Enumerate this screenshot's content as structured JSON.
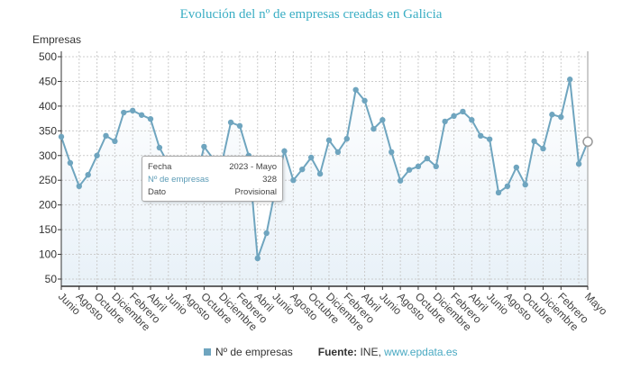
{
  "chart_data": {
    "type": "line",
    "title": "Evolución del nº de empresas creadas en Galicia",
    "ylabel": "Empresas",
    "xlabel": "",
    "ylim": [
      40,
      505
    ],
    "y_ticks": [
      50,
      100,
      150,
      200,
      250,
      300,
      350,
      400,
      450,
      500
    ],
    "grid": true,
    "x_range": [
      "2018 - Junio",
      "2023 - Mayo"
    ],
    "x_tick_labels": [
      {
        "index": 0,
        "label": "Junio"
      },
      {
        "index": 2,
        "label": "Agosto"
      },
      {
        "index": 4,
        "label": "Octubre"
      },
      {
        "index": 6,
        "label": "Diciembre"
      },
      {
        "index": 8,
        "label": "Febrero"
      },
      {
        "index": 10,
        "label": "Abril"
      },
      {
        "index": 12,
        "label": "Junio"
      },
      {
        "index": 14,
        "label": "Agosto"
      },
      {
        "index": 16,
        "label": "Octubre"
      },
      {
        "index": 18,
        "label": "Diciembre"
      },
      {
        "index": 20,
        "label": "Febrero"
      },
      {
        "index": 22,
        "label": "Abril"
      },
      {
        "index": 24,
        "label": "Junio"
      },
      {
        "index": 26,
        "label": "Agosto"
      },
      {
        "index": 28,
        "label": "Octubre"
      },
      {
        "index": 30,
        "label": "Diciembre"
      },
      {
        "index": 32,
        "label": "Febrero"
      },
      {
        "index": 34,
        "label": "Abril"
      },
      {
        "index": 36,
        "label": "Junio"
      },
      {
        "index": 38,
        "label": "Agosto"
      },
      {
        "index": 40,
        "label": "Octubre"
      },
      {
        "index": 42,
        "label": "Diciembre"
      },
      {
        "index": 44,
        "label": "Febrero"
      },
      {
        "index": 46,
        "label": "Abril"
      },
      {
        "index": 48,
        "label": "Junio"
      },
      {
        "index": 50,
        "label": "Agosto"
      },
      {
        "index": 52,
        "label": "Octubre"
      },
      {
        "index": 54,
        "label": "Diciembre"
      },
      {
        "index": 56,
        "label": "Febrero"
      },
      {
        "index": 59,
        "label": "Mayo"
      }
    ],
    "series": [
      {
        "name": "Nº de empresas",
        "color": "#6fa5bf",
        "values": [
          338,
          285,
          238,
          261,
          300,
          340,
          329,
          387,
          391,
          382,
          374,
          316,
          283,
          281,
          223,
          241,
          318,
          294,
          285,
          367,
          360,
          300,
          92,
          143,
          233,
          309,
          250,
          272,
          296,
          263,
          331,
          307,
          334,
          433,
          411,
          354,
          372,
          307,
          249,
          271,
          278,
          294,
          278,
          369,
          380,
          389,
          372,
          340,
          333,
          225,
          238,
          276,
          241,
          329,
          314,
          383,
          378,
          454,
          283,
          328
        ]
      }
    ],
    "legend_position": "bottom",
    "highlighted_index": 59
  },
  "tooltip": {
    "rows": [
      {
        "label": "Fecha",
        "value": "2023 - Mayo"
      },
      {
        "label": "Nº de empresas",
        "value": "328"
      },
      {
        "label": "Dato",
        "value": "Provisional"
      }
    ]
  },
  "legend": {
    "series_label": "Nº de empresas",
    "source_label": "Fuente:",
    "source_text": "INE,",
    "source_link": "www.epdata.es"
  }
}
